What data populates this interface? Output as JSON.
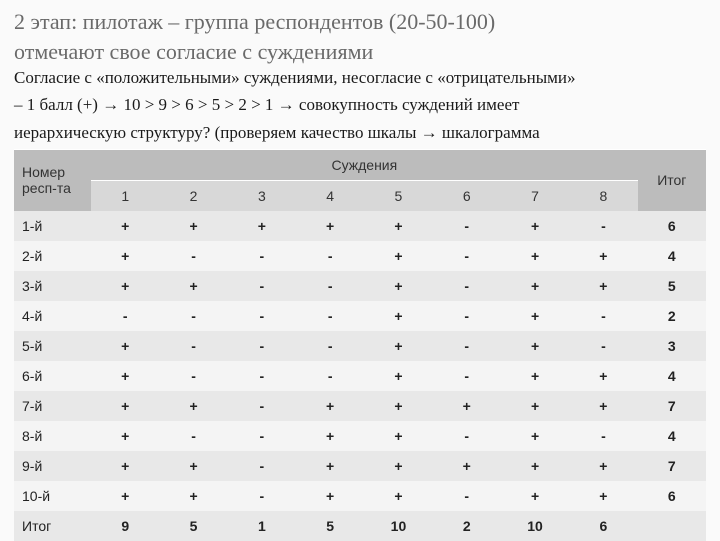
{
  "title_line1": "2 этап: пилотаж – группа респондентов (20-50-100)",
  "title_line2": "отмечают свое согласие с суждениями",
  "desc_line1": "Согласие с «положительными» суждениями, несогласие с «отрицательными»",
  "desc_line2": "– 1 балл (+) → 10 > 9 > 6 > 5 > 2 > 1  → совокупность суждений имеет",
  "desc_line3": "иерархическую структуру? (проверяем  качество шкалы  →  шкалограмма",
  "table": {
    "head_id": "Номер респ-та",
    "head_judg": "Суждения",
    "head_total": "Итог",
    "cols": [
      "1",
      "2",
      "3",
      "4",
      "5",
      "6",
      "7",
      "8"
    ],
    "rows": [
      {
        "id": "1-й",
        "v": [
          "+",
          "+",
          "+",
          "+",
          "+",
          "-",
          "+",
          "-"
        ],
        "t": "6"
      },
      {
        "id": "2-й",
        "v": [
          "+",
          "-",
          "-",
          "-",
          "+",
          "-",
          "+",
          "+"
        ],
        "t": "4"
      },
      {
        "id": "3-й",
        "v": [
          "+",
          "+",
          "-",
          "-",
          "+",
          "-",
          "+",
          "+"
        ],
        "t": "5"
      },
      {
        "id": "4-й",
        "v": [
          "-",
          "-",
          "-",
          "-",
          "+",
          "-",
          "+",
          "-"
        ],
        "t": "2"
      },
      {
        "id": "5-й",
        "v": [
          "+",
          "-",
          "-",
          "-",
          "+",
          "-",
          "+",
          "-"
        ],
        "t": "3"
      },
      {
        "id": "6-й",
        "v": [
          "+",
          "-",
          "-",
          "-",
          "+",
          "-",
          "+",
          "+"
        ],
        "t": "4"
      },
      {
        "id": "7-й",
        "v": [
          "+",
          "+",
          "-",
          "+",
          "+",
          "+",
          "+",
          "+"
        ],
        "t": "7"
      },
      {
        "id": "8-й",
        "v": [
          "+",
          "-",
          "-",
          "+",
          "+",
          "-",
          "+",
          "-"
        ],
        "t": "4"
      },
      {
        "id": "9-й",
        "v": [
          "+",
          "+",
          "-",
          "+",
          "+",
          "+",
          "+",
          "+"
        ],
        "t": "7"
      },
      {
        "id": "10-й",
        "v": [
          "+",
          "+",
          "-",
          "+",
          "+",
          "-",
          "+",
          "+"
        ],
        "t": "6"
      }
    ],
    "total_label": "Итог",
    "col_totals": [
      "9",
      "5",
      "1",
      "5",
      "10",
      "2",
      "10",
      "6"
    ],
    "grand_total": ""
  },
  "colors": {
    "bg": "#fafafa",
    "title_col": "#6a6a6a",
    "header_bg": "#bcbcbc",
    "subheader_bg": "#d8d8d8",
    "row_odd": "#e8e8e8",
    "row_even": "#f4f4f4"
  }
}
